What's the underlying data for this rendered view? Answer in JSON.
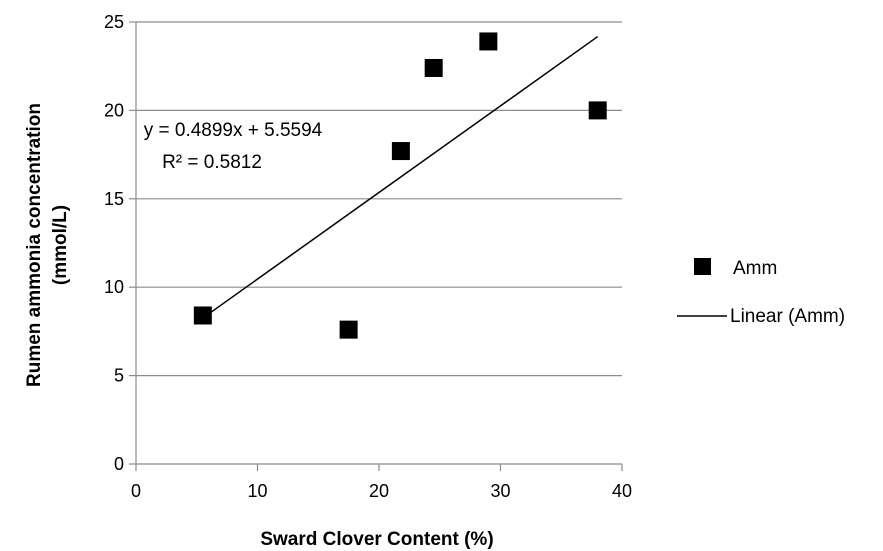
{
  "chart_data": {
    "type": "scatter",
    "title": "",
    "xlabel": "Sward Clover Content (%)",
    "ylabel_lines": [
      "Rumen ammonia concentration",
      "(mmol/L)"
    ],
    "xlim": [
      0,
      40
    ],
    "ylim": [
      0,
      25
    ],
    "x_ticks": [
      "0",
      "10",
      "20",
      "30",
      "40"
    ],
    "y_ticks": [
      "0",
      "5",
      "10",
      "15",
      "20",
      "25"
    ],
    "grid": "horizontal",
    "series": [
      {
        "name": "Amm",
        "marker": "square",
        "color": "#000000",
        "x": [
          5.5,
          17.5,
          21.8,
          24.5,
          29,
          38
        ],
        "y": [
          8.4,
          7.6,
          17.7,
          22.4,
          23.9,
          20
        ]
      }
    ],
    "trendline": {
      "name": "Linear (Amm)",
      "slope": 0.4899,
      "intercept": 5.5594,
      "x_range": [
        5.5,
        38
      ],
      "equation": "y = 0.4899x + 5.5594",
      "r_squared": "R² = 0.5812"
    },
    "legend_position": "right"
  }
}
